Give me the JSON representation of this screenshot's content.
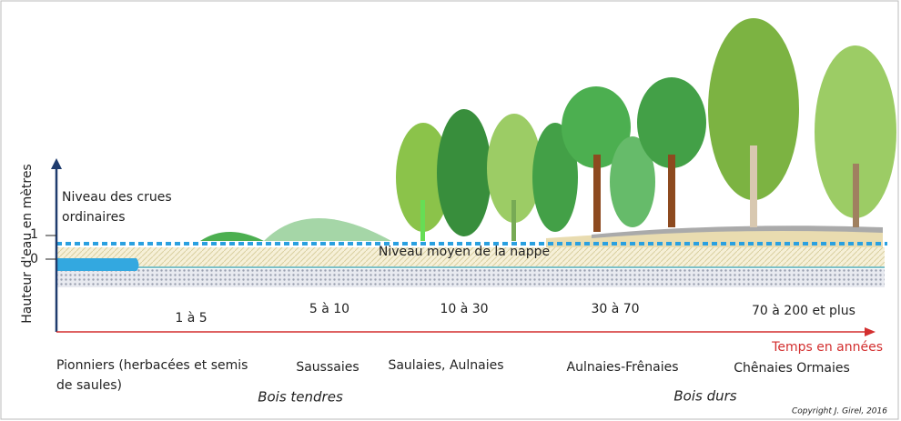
{
  "axis": {
    "label": "Hauteur d'eau en mètres",
    "ticks": [
      "1",
      "0"
    ]
  },
  "flood_level": {
    "lines": [
      "Niveau des crues",
      "ordinaires"
    ]
  },
  "water_table": "Niveau moyen de la nappe",
  "time_axis": {
    "label": "Temps en années"
  },
  "stages": [
    {
      "period": "1 à 5",
      "label_lines": [
        "Pionniers (herbacées et semis",
        "de saules)"
      ]
    },
    {
      "period": "5 à 10",
      "label_lines": [
        "Saussaies"
      ]
    },
    {
      "period": "10 à 30",
      "label_lines": [
        "Saulaies, Aulnaies"
      ]
    },
    {
      "period": "30 à 70",
      "label_lines": [
        "Aulnaies-Frênaies"
      ]
    },
    {
      "period": "70 à 200 et plus",
      "label_lines": [
        "Chênaies Ormaies"
      ]
    }
  ],
  "groups": [
    "Bois tendres",
    "Bois durs"
  ],
  "copyright": "Copyright J. Girel, 2016"
}
